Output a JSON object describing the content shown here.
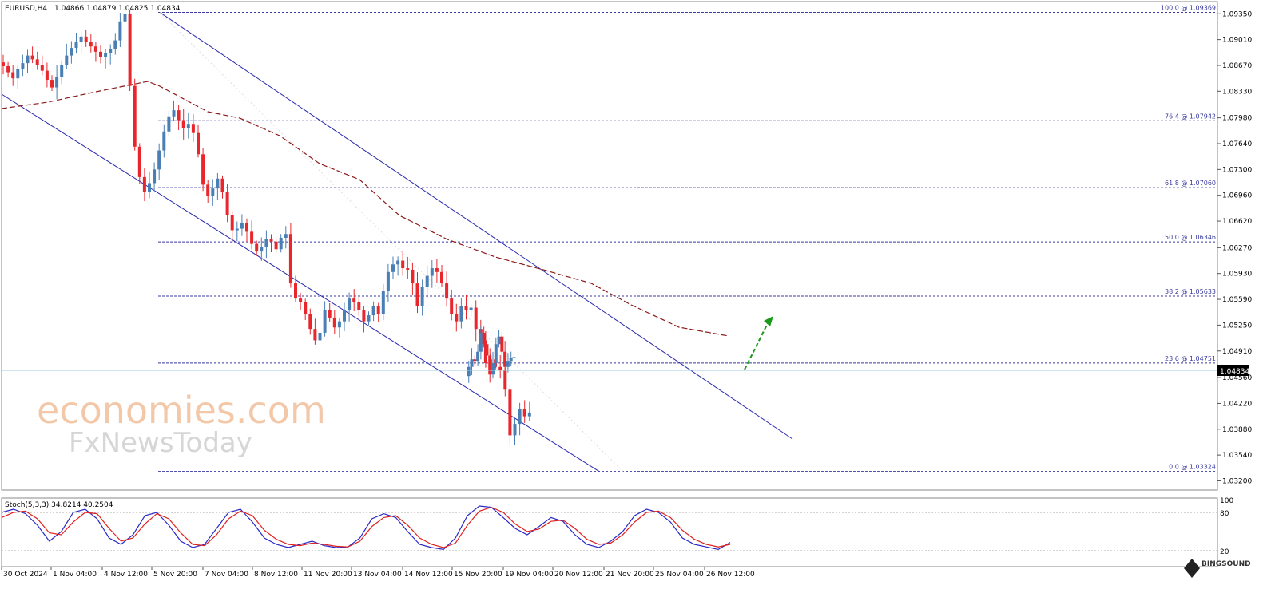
{
  "header": {
    "symbol": "EURUSD,H4",
    "ohlc": "1.04866 1.04879 1.04825 1.04834"
  },
  "stoch_header": "Stoch(5,3,3) 34.8214 40.2504",
  "watermark": {
    "line1": "economies.com",
    "line2": "FxNewsToday"
  },
  "corner_logo": "BINGSOUND",
  "colors": {
    "bull": "#4a7fb5",
    "bear": "#e8262c",
    "channel": "#2b2bb0",
    "fib": "#3a3aa0",
    "ma": "#8b1a1a",
    "stoch_main": "#2828c8",
    "stoch_signal": "#e02020",
    "arrow": "#1a9a1a",
    "current_price_bg": "#000000"
  },
  "chart_data": {
    "type": "candlestick",
    "y_ticks": [
      "1.09350",
      "1.09010",
      "1.08670",
      "1.08330",
      "1.07980",
      "1.07640",
      "1.07300",
      "1.06960",
      "1.06620",
      "1.06270",
      "1.05930",
      "1.05590",
      "1.05250",
      "1.04910",
      "1.04560",
      "1.04220",
      "1.03880",
      "1.03540",
      "1.03200"
    ],
    "ylim": [
      1.031,
      1.095
    ],
    "x_labels": [
      "30 Oct 2024",
      "1 Nov 04:00",
      "4 Nov 12:00",
      "5 Nov 20:00",
      "7 Nov 04:00",
      "8 Nov 12:00",
      "11 Nov 20:00",
      "13 Nov 04:00",
      "14 Nov 12:00",
      "15 Nov 20:00",
      "19 Nov 04:00",
      "20 Nov 12:00",
      "21 Nov 20:00",
      "25 Nov 04:00",
      "26 Nov 12:00"
    ],
    "current_price": "1.04834",
    "current_price_value": 1.04834,
    "fib_levels": [
      {
        "label": "100.0 @ 1.09369",
        "value": 1.09369
      },
      {
        "label": "76.4 @ 1.07942",
        "value": 1.07942
      },
      {
        "label": "61.8 @ 1.07060",
        "value": 1.0706
      },
      {
        "label": "50.0 @ 1.06346",
        "value": 1.06346
      },
      {
        "label": "38.2 @ 1.05633",
        "value": 1.05633
      },
      {
        "label": "23.6 @ 1.04751",
        "value": 1.04751
      },
      {
        "label": "0.0 @ 1.03324",
        "value": 1.03324
      }
    ],
    "channel_upper": [
      [
        1.09369,
        0
      ],
      [
        1.038,
        1
      ]
    ],
    "close_path": [
      1.0866,
      1.0858,
      1.085,
      1.0862,
      1.087,
      1.088,
      1.0875,
      1.0868,
      1.086,
      1.0848,
      1.0838,
      1.0852,
      1.0868,
      1.088,
      1.089,
      1.0898,
      1.0905,
      1.0898,
      1.0892,
      1.0885,
      1.0878,
      1.0883,
      1.0888,
      1.09,
      1.0925,
      1.0935,
      1.084,
      1.076,
      1.072,
      1.07,
      1.0712,
      1.073,
      1.0755,
      1.078,
      1.08,
      1.0808,
      1.0795,
      1.0785,
      1.079,
      1.0778,
      1.075,
      1.071,
      1.0695,
      1.0705,
      1.0718,
      1.07,
      1.067,
      1.065,
      1.0652,
      1.066,
      1.0648,
      1.0632,
      1.0622,
      1.0628,
      1.0638,
      1.0635,
      1.0625,
      1.064,
      1.0645,
      1.058,
      1.056,
      1.0555,
      1.054,
      1.052,
      1.0505,
      1.0515,
      1.0545,
      1.0535,
      1.0522,
      1.053,
      1.0545,
      1.056,
      1.0555,
      1.0545,
      1.053,
      1.0538,
      1.055,
      1.054,
      1.057,
      1.0595,
      1.0605,
      1.061,
      1.06,
      1.0598,
      1.058,
      1.055,
      1.0575,
      1.059,
      1.06,
      1.0595,
      1.058,
      1.056,
      1.054,
      1.053,
      1.055,
      1.0545,
      1.0548,
      1.052,
      1.0505,
      1.0475,
      1.048,
      1.047,
      1.0465,
      1.044,
      1.038,
      1.0395,
      1.0415,
      1.0405,
      1.041
    ],
    "close_path_2": [
      1.047,
      1.048,
      1.0478,
      1.049,
      1.0515,
      1.05,
      1.0485,
      1.046,
      1.0475,
      1.05,
      1.051,
      1.049,
      1.047,
      1.0478,
      1.0482,
      1.0483
    ],
    "stoch_k": [
      80,
      85,
      78,
      60,
      35,
      50,
      80,
      85,
      70,
      40,
      30,
      45,
      75,
      80,
      60,
      35,
      25,
      30,
      55,
      80,
      85,
      65,
      40,
      30,
      25,
      30,
      35,
      28,
      25,
      26,
      40,
      70,
      78,
      72,
      50,
      30,
      25,
      22,
      40,
      75,
      90,
      88,
      72,
      55,
      45,
      58,
      72,
      66,
      45,
      30,
      25,
      35,
      50,
      75,
      85,
      80,
      65,
      40,
      30,
      26,
      22,
      33
    ],
    "stoch_d": [
      72,
      80,
      82,
      70,
      48,
      45,
      65,
      80,
      78,
      55,
      35,
      40,
      62,
      78,
      70,
      48,
      30,
      28,
      45,
      70,
      82,
      75,
      52,
      38,
      30,
      28,
      32,
      30,
      27,
      26,
      35,
      58,
      72,
      75,
      60,
      40,
      30,
      25,
      32,
      60,
      82,
      88,
      80,
      62,
      50,
      54,
      66,
      68,
      55,
      38,
      30,
      32,
      45,
      65,
      80,
      82,
      72,
      52,
      38,
      30,
      26,
      30
    ]
  }
}
